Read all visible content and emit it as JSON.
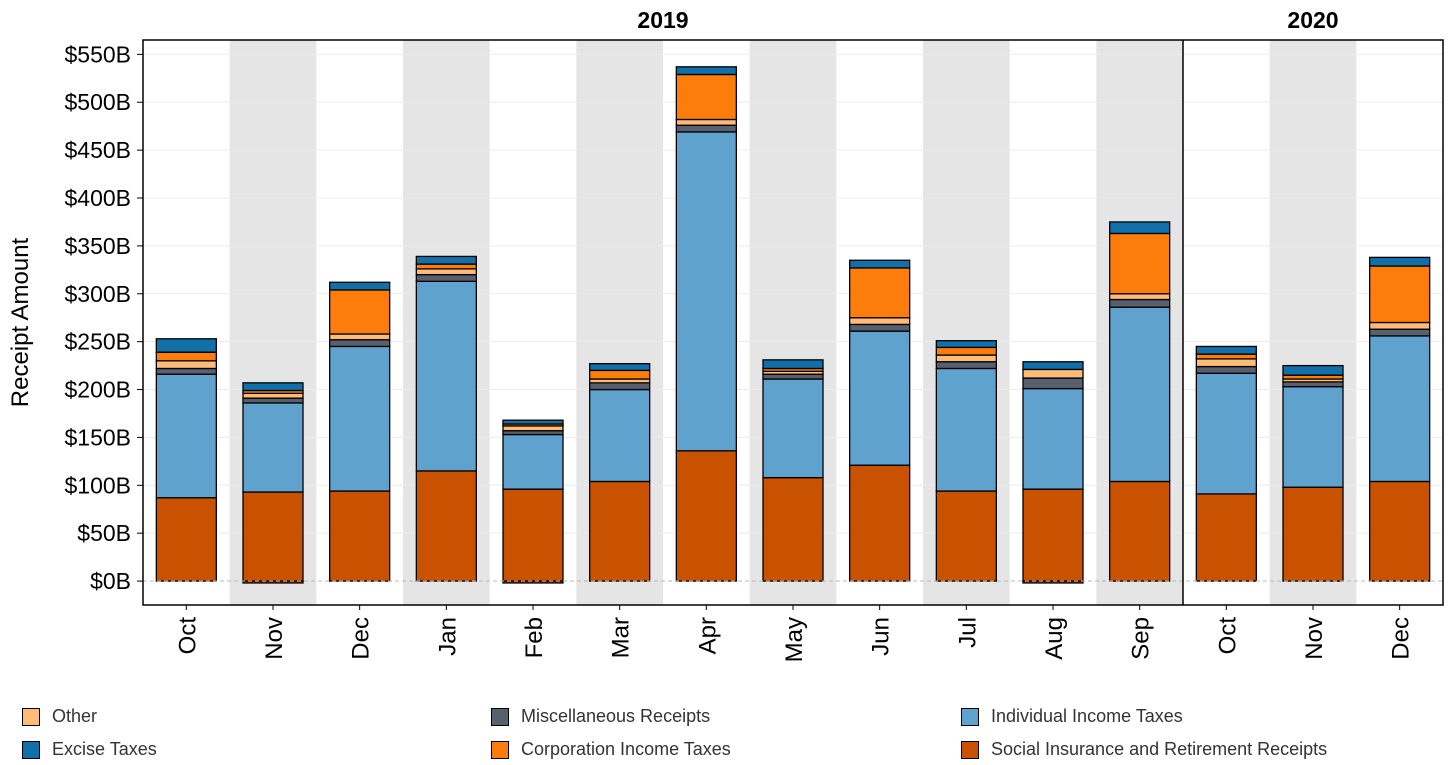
{
  "chart_data": {
    "type": "bar",
    "stacked": true,
    "ylabel": "Receipt Amount",
    "y_ticks": [
      "$0B",
      "$50B",
      "$100B",
      "$150B",
      "$200B",
      "$250B",
      "$300B",
      "$350B",
      "$400B",
      "$450B",
      "$500B",
      "$550B"
    ],
    "y_tick_values": [
      0,
      50,
      100,
      150,
      200,
      250,
      300,
      350,
      400,
      450,
      500,
      550
    ],
    "ylim": [
      -25,
      565
    ],
    "categories": [
      "Oct",
      "Nov",
      "Dec",
      "Jan",
      "Feb",
      "Mar",
      "Apr",
      "May",
      "Jun",
      "Jul",
      "Aug",
      "Sep",
      "Oct",
      "Nov",
      "Dec"
    ],
    "year_groups": [
      {
        "label": "2019",
        "start": 0,
        "end": 11
      },
      {
        "label": "2020",
        "start": 12,
        "end": 14
      }
    ],
    "grid": true,
    "alternating_band_color": "#e5e5e5",
    "legend_position": "bottom",
    "series": [
      {
        "name": "Social Insurance and Retirement Receipts",
        "color": "#c85200",
        "values": [
          87,
          93,
          94,
          115,
          96,
          104,
          136,
          108,
          121,
          94,
          96,
          104,
          91,
          98,
          104
        ],
        "negatives": [
          0,
          -2,
          0,
          0,
          -2,
          0,
          0,
          0,
          0,
          0,
          -2,
          0,
          0,
          0,
          0
        ]
      },
      {
        "name": "Individual Income Taxes",
        "color": "#5fa2ce",
        "values": [
          129,
          93,
          151,
          198,
          57,
          96,
          333,
          103,
          140,
          128,
          105,
          182,
          126,
          105,
          152
        ]
      },
      {
        "name": "Miscellaneous Receipts",
        "color": "#57606c",
        "values": [
          6,
          5,
          7,
          7,
          4,
          7,
          7,
          5,
          7,
          7,
          11,
          8,
          7,
          5,
          7
        ]
      },
      {
        "name": "Other",
        "color": "#ffbc79",
        "values": [
          8,
          5,
          6,
          6,
          5,
          4,
          6,
          3,
          7,
          7,
          9,
          6,
          8,
          3,
          7
        ]
      },
      {
        "name": "Corporation Income Taxes",
        "color": "#fc7d0b",
        "values": [
          9,
          3,
          46,
          5,
          2,
          9,
          47,
          3,
          52,
          8,
          0,
          63,
          5,
          4,
          59
        ]
      },
      {
        "name": "Excise Taxes",
        "color": "#1170aa",
        "values": [
          14,
          8,
          8,
          8,
          4,
          7,
          8,
          9,
          8,
          7,
          8,
          12,
          8,
          10,
          9
        ]
      }
    ]
  },
  "legend": {
    "items": [
      {
        "label": "Other",
        "color": "#ffbc79"
      },
      {
        "label": "Miscellaneous Receipts",
        "color": "#57606c"
      },
      {
        "label": "Individual Income Taxes",
        "color": "#5fa2ce"
      },
      {
        "label": "Excise Taxes",
        "color": "#1170aa"
      },
      {
        "label": "Corporation Income Taxes",
        "color": "#fc7d0b"
      },
      {
        "label": "Social Insurance and Retirement Receipts",
        "color": "#c85200"
      }
    ]
  }
}
